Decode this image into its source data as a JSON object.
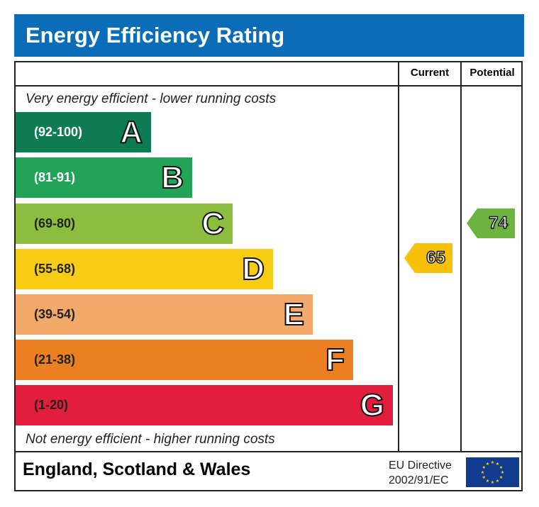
{
  "title": "Energy Efficiency Rating",
  "columns": {
    "current": "Current",
    "potential": "Potential"
  },
  "notes": {
    "top": "Very energy efficient - lower running costs",
    "bottom": "Not energy efficient - higher running costs"
  },
  "footer": {
    "region": "England, Scotland & Wales",
    "directive_line1": "EU Directive",
    "directive_line2": "2002/91/EC",
    "flag_icon": "eu-flag-icon"
  },
  "chart_data": {
    "type": "bar",
    "title": "Energy Efficiency Rating",
    "bands": [
      {
        "letter": "A",
        "range": "(92-100)",
        "color": "#0f7b52",
        "text_color": "#ffffff"
      },
      {
        "letter": "B",
        "range": "(81-91)",
        "color": "#23a358",
        "text_color": "#ffffff"
      },
      {
        "letter": "C",
        "range": "(69-80)",
        "color": "#8cbd3f",
        "text_color": "#222222"
      },
      {
        "letter": "D",
        "range": "(55-68)",
        "color": "#f7cc15",
        "text_color": "#222222"
      },
      {
        "letter": "E",
        "range": "(39-54)",
        "color": "#f2a96b",
        "text_color": "#222222"
      },
      {
        "letter": "F",
        "range": "(21-38)",
        "color": "#ec7f22",
        "text_color": "#222222"
      },
      {
        "letter": "G",
        "range": "(1-20)",
        "color": "#e31d3c",
        "text_color": "#222222"
      }
    ],
    "current": {
      "value": 65,
      "band": "D",
      "color": "#f7c10b"
    },
    "potential": {
      "value": 74,
      "band": "C",
      "color": "#6db33f"
    }
  }
}
